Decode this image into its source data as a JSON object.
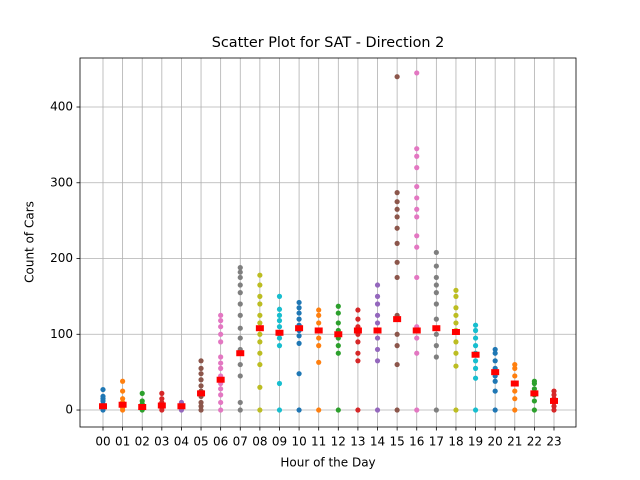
{
  "chart_data": {
    "type": "scatter",
    "title": "Scatter Plot for SAT - Direction 2",
    "x_label": "Hour of the Day",
    "y_label": "Count of Cars",
    "categories": [
      "00",
      "01",
      "02",
      "03",
      "04",
      "05",
      "06",
      "07",
      "08",
      "09",
      "10",
      "11",
      "12",
      "13",
      "14",
      "15",
      "16",
      "17",
      "18",
      "19",
      "20",
      "21",
      "22",
      "23"
    ],
    "ylim": [
      -22.4,
      464.7
    ],
    "yticks": [
      0,
      100,
      200,
      300,
      400
    ],
    "grid": true,
    "mean_color": "#ff0000",
    "means": [
      5,
      7,
      4,
      6,
      5,
      22,
      40,
      75,
      108,
      102,
      108,
      105,
      100,
      105,
      105,
      120,
      105,
      108,
      103,
      73,
      50,
      35,
      22,
      12
    ],
    "series": [
      {
        "color": "#1f77b4",
        "values": [
          0,
          2,
          5,
          8,
          12,
          15,
          18,
          27
        ]
      },
      {
        "color": "#ff7f0e",
        "values": [
          0,
          3,
          6,
          10,
          15,
          25,
          38
        ]
      },
      {
        "color": "#2ca02c",
        "values": [
          0,
          2,
          5,
          8,
          12,
          22
        ]
      },
      {
        "color": "#d62728",
        "values": [
          0,
          3,
          6,
          10,
          15,
          22
        ]
      },
      {
        "color": "#9467bd",
        "values": [
          0,
          2,
          5,
          8,
          10
        ]
      },
      {
        "color": "#8c564b",
        "values": [
          0,
          5,
          10,
          18,
          25,
          32,
          40,
          48,
          55,
          65
        ]
      },
      {
        "color": "#e377c2",
        "values": [
          0,
          10,
          20,
          28,
          35,
          45,
          55,
          62,
          70,
          90,
          100,
          110,
          118,
          125
        ]
      },
      {
        "color": "#7f7f7f",
        "values": [
          0,
          10,
          45,
          60,
          80,
          95,
          108,
          125,
          140,
          155,
          165,
          175,
          182,
          188
        ]
      },
      {
        "color": "#bcbd22",
        "values": [
          0,
          30,
          60,
          75,
          90,
          100,
          115,
          125,
          140,
          150,
          165,
          178
        ]
      },
      {
        "color": "#17becf",
        "values": [
          0,
          35,
          85,
          95,
          100,
          110,
          118,
          125,
          133,
          150
        ]
      },
      {
        "color": "#1f77b4",
        "values": [
          0,
          48,
          88,
          98,
          105,
          112,
          120,
          128,
          135,
          142
        ]
      },
      {
        "color": "#ff7f0e",
        "values": [
          0,
          63,
          85,
          95,
          105,
          115,
          125,
          132
        ]
      },
      {
        "color": "#2ca02c",
        "values": [
          0,
          75,
          85,
          95,
          105,
          115,
          128,
          137
        ]
      },
      {
        "color": "#d62728",
        "values": [
          0,
          65,
          75,
          90,
          100,
          110,
          120,
          132
        ]
      },
      {
        "color": "#9467bd",
        "values": [
          0,
          65,
          80,
          95,
          105,
          115,
          125,
          140,
          150,
          165
        ]
      },
      {
        "color": "#8c564b",
        "values": [
          0,
          60,
          85,
          100,
          125,
          175,
          195,
          220,
          240,
          255,
          265,
          275,
          287,
          440
        ]
      },
      {
        "color": "#e377c2",
        "values": [
          0,
          75,
          95,
          110,
          175,
          215,
          230,
          255,
          265,
          280,
          295,
          320,
          335,
          345,
          445
        ]
      },
      {
        "color": "#7f7f7f",
        "values": [
          0,
          70,
          85,
          100,
          120,
          140,
          155,
          165,
          175,
          190,
          208
        ]
      },
      {
        "color": "#bcbd22",
        "values": [
          0,
          58,
          75,
          90,
          105,
          115,
          125,
          135,
          150,
          158
        ]
      },
      {
        "color": "#17becf",
        "values": [
          0,
          42,
          55,
          65,
          75,
          85,
          95,
          105,
          112
        ]
      },
      {
        "color": "#1f77b4",
        "values": [
          0,
          25,
          38,
          45,
          55,
          65,
          75,
          80
        ]
      },
      {
        "color": "#ff7f0e",
        "values": [
          0,
          15,
          25,
          35,
          45,
          55,
          60
        ]
      },
      {
        "color": "#2ca02c",
        "values": [
          0,
          12,
          20,
          28,
          35,
          38
        ]
      },
      {
        "color": "#d62728",
        "values": [
          0,
          5,
          10,
          15,
          20,
          25
        ]
      }
    ]
  }
}
